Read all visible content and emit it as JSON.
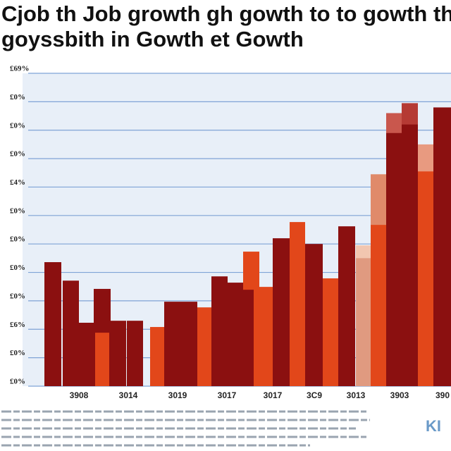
{
  "chart_data": {
    "type": "bar",
    "title": "Cjob  th Job growth gh gowth to to gowth th",
    "subtitle": "goyssbith in Gowth et Gowth",
    "ylim": [
      0,
      11
    ],
    "yticks": [
      {
        "value": 0,
        "label": "£0%"
      },
      {
        "value": 1,
        "label": "£0%"
      },
      {
        "value": 2,
        "label": "£6%"
      },
      {
        "value": 3,
        "label": "£0%"
      },
      {
        "value": 4,
        "label": "£0%"
      },
      {
        "value": 5,
        "label": "£0%"
      },
      {
        "value": 6,
        "label": "£0%"
      },
      {
        "value": 7,
        "label": "£4%"
      },
      {
        "value": 8,
        "label": "£0%"
      },
      {
        "value": 9,
        "label": "£0%"
      },
      {
        "value": 10,
        "label": "£0%"
      },
      {
        "value": 11,
        "label": "£69%"
      }
    ],
    "categories": [
      "3908",
      "3014",
      "3019",
      "3017",
      "3017",
      "3C9",
      "3013",
      "3903",
      "390"
    ],
    "bars": [
      {
        "color": "#8b1010",
        "value": 4.36
      },
      {
        "color": "#8b1010",
        "value": 3.71
      },
      {
        "color": "#8b1010",
        "value": 2.23
      },
      {
        "color": "#8b1010",
        "value": 3.42
      },
      {
        "color": "#e2471a",
        "value": 1.88
      },
      {
        "color": "#8b1010",
        "value": 2.3
      },
      {
        "color": "#8b1010",
        "value": 2.3
      },
      {
        "color": "#e2471a",
        "value": 2.08
      },
      {
        "color": "#8b1010",
        "value": 2.97
      },
      {
        "color": "#8b1010",
        "value": 2.97
      },
      {
        "color": "#e2471a",
        "value": 2.77
      },
      {
        "color": "#8b1010",
        "value": 3.86
      },
      {
        "color": "#8b1010",
        "value": 3.64
      },
      {
        "color": "#e2471a",
        "value": 4.73
      },
      {
        "color": "#8b1010",
        "value": 3.39
      },
      {
        "color": "#e2471a",
        "value": 3.49
      },
      {
        "color": "#8b1010",
        "value": 5.2
      },
      {
        "color": "#e2471a",
        "value": 5.77
      },
      {
        "color": "#8b1010",
        "value": 5.0
      },
      {
        "color": "#e2471a",
        "value": 3.79
      },
      {
        "color": "#8b1010",
        "value": 5.62
      },
      {
        "color": "#f2c6b0",
        "value": 4.95
      },
      {
        "color": "#e09a80",
        "value": 4.5
      },
      {
        "color": "#e08a6a",
        "value": 7.45
      },
      {
        "color": "#e2471a",
        "value": 5.67
      },
      {
        "color": "#c9574d",
        "value": 9.6
      },
      {
        "color": "#8b1010",
        "value": 8.9
      },
      {
        "color": "#b53a34",
        "value": 9.95
      },
      {
        "color": "#8b1010",
        "value": 9.2
      },
      {
        "color": "#e89a80",
        "value": 8.5
      },
      {
        "color": "#e2471a",
        "value": 7.55
      },
      {
        "color": "#8b1010",
        "value": 9.8
      }
    ],
    "grid": true,
    "logo": "KI"
  }
}
